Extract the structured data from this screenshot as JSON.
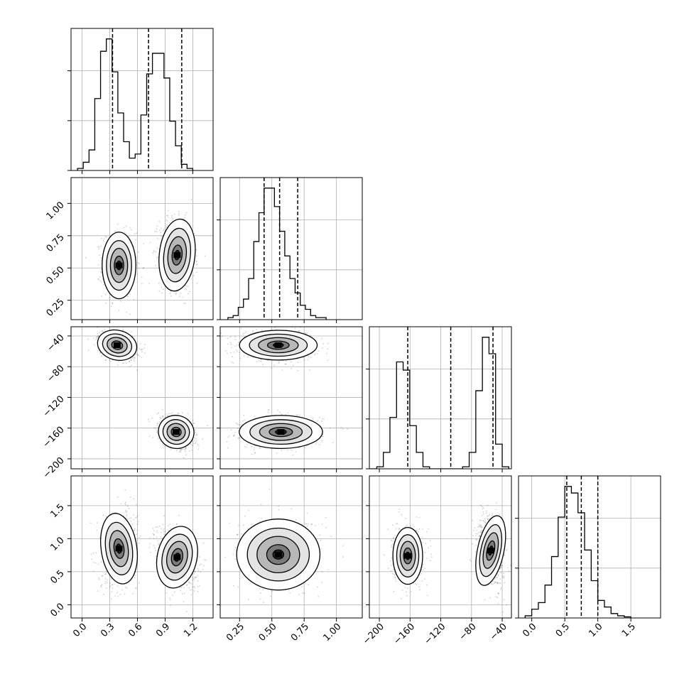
{
  "chart_data": {
    "type": "corner",
    "title": "",
    "dims": 4,
    "params": [
      {
        "range": [
          -0.12,
          1.42
        ],
        "ticks": [
          0.0,
          0.3,
          0.6,
          0.9,
          1.2
        ],
        "tick_labels": [
          "0.0",
          "0.3",
          "0.6",
          "0.9",
          "1.2"
        ],
        "quantiles": [
          0.33,
          0.72,
          1.08
        ]
      },
      {
        "range": [
          0.1,
          1.2
        ],
        "ticks": [
          0.25,
          0.5,
          0.75,
          1.0
        ],
        "tick_labels": [
          "0.25",
          "0.50",
          "0.75",
          "1.00"
        ],
        "quantiles": [
          0.44,
          0.56,
          0.7
        ]
      },
      {
        "range": [
          -213,
          -28
        ],
        "ticks": [
          -200,
          -160,
          -120,
          -80,
          -40
        ],
        "tick_labels": [
          "−200",
          "−160",
          "−120",
          "−80",
          "−40"
        ],
        "quantiles": [
          -163,
          -107,
          -52
        ]
      },
      {
        "range": [
          -0.2,
          1.95
        ],
        "ticks": [
          0.0,
          0.5,
          1.0,
          1.5
        ],
        "tick_labels": [
          "0.0",
          "0.5",
          "1.0",
          "1.5"
        ],
        "quantiles": [
          0.53,
          0.75,
          1.0
        ]
      }
    ],
    "row_tick_labels": {
      "1": {
        "ticks": [
          0.25,
          0.5,
          0.75,
          1.0
        ],
        "labels": [
          "0.25",
          "0.50",
          "0.75",
          "1.00"
        ]
      },
      "2": {
        "ticks": [
          -200,
          -160,
          -120,
          -80,
          -40
        ],
        "labels": [
          "−200",
          "−160",
          "−120",
          "−80",
          "−40"
        ]
      },
      "3": {
        "ticks": [
          0.0,
          0.5,
          1.0,
          1.5
        ],
        "labels": [
          "0.0",
          "0.5",
          "1.0",
          "1.5"
        ]
      }
    },
    "histograms": [
      {
        "edges_start": -0.05,
        "bin_width": 0.0625,
        "counts": [
          1,
          4,
          10,
          35,
          58,
          64,
          48,
          28,
          14,
          6,
          8,
          27,
          47,
          57,
          57,
          45,
          24,
          12,
          3,
          1
        ]
      },
      {
        "edges_start": 0.16,
        "bin_width": 0.04,
        "counts": [
          1,
          2,
          6,
          10,
          20,
          38,
          52,
          64,
          64,
          55,
          43,
          31,
          20,
          13,
          7,
          5,
          2,
          1,
          1
        ]
      },
      {
        "edges_start": -212,
        "bin_width": 8.6,
        "counts": [
          0,
          1,
          8,
          25,
          52,
          48,
          21,
          8,
          1,
          0,
          0,
          0,
          0,
          0,
          1,
          8,
          38,
          64,
          56,
          12,
          1
        ]
      },
      {
        "edges_start": -0.1,
        "bin_width": 0.1,
        "counts": [
          1,
          4,
          7,
          15,
          28,
          46,
          60,
          57,
          48,
          31,
          17,
          8,
          5,
          2,
          1,
          0.5
        ]
      }
    ],
    "clusters": [
      {
        "i": 1,
        "j": 0,
        "modes": [
          {
            "cx": 0.4,
            "cy": 0.52,
            "sx": 0.085,
            "sy": 0.12,
            "rho": 0.0
          },
          {
            "cx": 1.03,
            "cy": 0.6,
            "sx": 0.09,
            "sy": 0.13,
            "rho": -0.15
          }
        ]
      },
      {
        "i": 2,
        "j": 0,
        "modes": [
          {
            "cx": 0.38,
            "cy": -52,
            "sx": 0.1,
            "sy": 9,
            "rho": -0.35
          },
          {
            "cx": 1.02,
            "cy": -165,
            "sx": 0.09,
            "sy": 10,
            "rho": -0.35
          }
        ]
      },
      {
        "i": 2,
        "j": 1,
        "modes": [
          {
            "cx": 0.55,
            "cy": -52,
            "sx": 0.14,
            "sy": 9,
            "rho": 0.0
          },
          {
            "cx": 0.57,
            "cy": -165,
            "sx": 0.15,
            "sy": 10,
            "rho": 0.0
          }
        ]
      },
      {
        "i": 3,
        "j": 0,
        "modes": [
          {
            "cx": 0.4,
            "cy": 0.85,
            "sx": 0.09,
            "sy": 0.25,
            "rho": 0.2
          },
          {
            "cx": 1.03,
            "cy": 0.72,
            "sx": 0.1,
            "sy": 0.22,
            "rho": -0.3
          }
        ]
      },
      {
        "i": 3,
        "j": 1,
        "modes": [
          {
            "cx": 0.55,
            "cy": 0.76,
            "sx": 0.15,
            "sy": 0.25,
            "rho": 0.0
          }
        ]
      },
      {
        "i": 3,
        "j": 2,
        "modes": [
          {
            "cx": -163,
            "cy": 0.74,
            "sx": 9,
            "sy": 0.2,
            "rho": 0.0
          },
          {
            "cx": -55,
            "cy": 0.82,
            "sx": 8,
            "sy": 0.25,
            "rho": -0.3
          }
        ]
      }
    ],
    "grid": true,
    "xlabel": "",
    "ylabel": ""
  }
}
